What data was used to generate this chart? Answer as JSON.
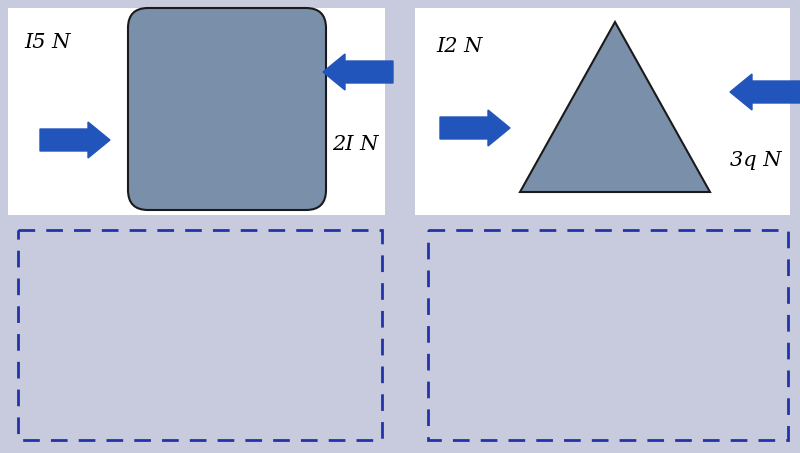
{
  "bg_color": "#c8cade",
  "panel_color": "#ffffff",
  "arrow_color": "#2255bb",
  "shape_fill": "#7a8faa",
  "shape_edge": "#1a1a1a",
  "dashed_color": "#2233aa",
  "panel1": {
    "label_left": "I5 N",
    "label_right": "2I N"
  },
  "panel2": {
    "label_left": "I2 N",
    "label_right": "3q N"
  },
  "font_size_label": 15
}
